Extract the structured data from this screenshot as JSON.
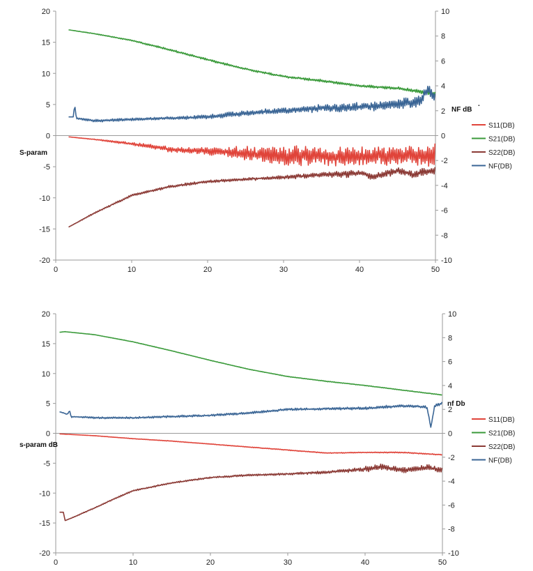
{
  "chart_data": [
    {
      "type": "line",
      "title": "",
      "xlabel": "",
      "ylabel": "S-param",
      "y2label": "NF dB",
      "stray_mark": ".",
      "xlim": [
        0,
        50
      ],
      "xticks": [
        0,
        10,
        20,
        30,
        40,
        50
      ],
      "ylim": [
        -20,
        20
      ],
      "yticks": [
        -20,
        -15,
        -10,
        -5,
        0,
        5,
        10,
        15,
        20
      ],
      "y2lim": [
        -10,
        10
      ],
      "y2ticks": [
        -10,
        -8,
        -6,
        -4,
        -2,
        0,
        2,
        4,
        6,
        8,
        10
      ],
      "grid": false,
      "legend": "right",
      "series": [
        {
          "name": "S11(DB)",
          "color": "#e0443a",
          "axis": "left",
          "x": [
            1.7,
            5,
            10,
            15,
            20,
            22,
            25,
            30,
            32,
            35,
            40,
            45,
            50
          ],
          "y": [
            -0.2,
            -0.6,
            -1.3,
            -2.2,
            -2.5,
            -2.6,
            -2.8,
            -3.2,
            -3.3,
            -3.3,
            -3.3,
            -3.3,
            -3.2
          ],
          "noise": [
            0,
            0.05,
            0.2,
            0.4,
            0.5,
            0.7,
            0.9,
            1.4,
            1.4,
            1.3,
            1.3,
            1.4,
            1.8
          ]
        },
        {
          "name": "S21(DB)",
          "color": "#3a9a3a",
          "axis": "left",
          "x": [
            1.7,
            5,
            10,
            15,
            20,
            25,
            30,
            35,
            40,
            45,
            50
          ],
          "y": [
            17.0,
            16.4,
            15.3,
            13.8,
            12.2,
            10.7,
            9.5,
            8.8,
            8.0,
            7.6,
            6.7
          ],
          "noise": [
            0,
            0.05,
            0.1,
            0.15,
            0.15,
            0.15,
            0.15,
            0.2,
            0.2,
            0.2,
            0.3
          ]
        },
        {
          "name": "S22(DB)",
          "color": "#8b3a35",
          "axis": "left",
          "x": [
            1.7,
            5,
            10,
            15,
            20,
            25,
            30,
            35,
            38,
            40,
            42,
            45,
            47,
            50
          ],
          "y": [
            -14.7,
            -12.5,
            -9.6,
            -8.2,
            -7.4,
            -7.0,
            -6.7,
            -6.3,
            -6.2,
            -6.0,
            -6.6,
            -5.6,
            -6.2,
            -5.6
          ],
          "noise": [
            0,
            0.1,
            0.15,
            0.2,
            0.2,
            0.2,
            0.25,
            0.4,
            0.5,
            0.4,
            0.5,
            0.5,
            0.5,
            0.6
          ]
        },
        {
          "name": "NF(DB)",
          "color": "#3a6595",
          "axis": "right",
          "x": [
            1.7,
            2.3,
            2.5,
            2.7,
            5,
            10,
            15,
            20,
            25,
            30,
            35,
            40,
            45,
            48,
            49,
            50
          ],
          "y": [
            1.5,
            1.5,
            2.5,
            1.4,
            1.2,
            1.3,
            1.4,
            1.5,
            1.8,
            2.0,
            2.2,
            2.3,
            2.5,
            2.8,
            3.8,
            3.0
          ],
          "noise": [
            0,
            0,
            0,
            0.05,
            0.1,
            0.1,
            0.1,
            0.15,
            0.2,
            0.2,
            0.25,
            0.3,
            0.35,
            0.4,
            0.4,
            0.4
          ]
        }
      ]
    },
    {
      "type": "line",
      "title": "",
      "xlabel": "",
      "ylabel": "s-param dB",
      "y2label": "nf Db",
      "xlim": [
        0,
        50
      ],
      "xticks": [
        0,
        10,
        20,
        30,
        40,
        50
      ],
      "ylim": [
        -20,
        20
      ],
      "yticks": [
        -20,
        -15,
        -10,
        -5,
        0,
        5,
        10,
        15,
        20
      ],
      "y2lim": [
        -10,
        10
      ],
      "y2ticks": [
        -10,
        -8,
        -6,
        -4,
        -2,
        0,
        2,
        4,
        6,
        8,
        10
      ],
      "grid": false,
      "legend": "right",
      "series": [
        {
          "name": "S11(DB)",
          "color": "#e0443a",
          "axis": "left",
          "x": [
            0.5,
            5,
            10,
            15,
            20,
            25,
            30,
            35,
            40,
            45,
            50
          ],
          "y": [
            -0.1,
            -0.4,
            -0.9,
            -1.3,
            -1.8,
            -2.3,
            -2.8,
            -3.3,
            -3.2,
            -3.2,
            -3.6
          ],
          "noise": [
            0,
            0.02,
            0.03,
            0.04,
            0.04,
            0.05,
            0.06,
            0.06,
            0.07,
            0.08,
            0.08
          ]
        },
        {
          "name": "S21(DB)",
          "color": "#3a9a3a",
          "axis": "left",
          "x": [
            0.5,
            1.2,
            5,
            10,
            15,
            20,
            25,
            30,
            35,
            40,
            45,
            50
          ],
          "y": [
            16.9,
            17.0,
            16.5,
            15.3,
            13.8,
            12.2,
            10.7,
            9.5,
            8.7,
            8.0,
            7.2,
            6.4
          ],
          "noise": [
            0,
            0,
            0.02,
            0.03,
            0.03,
            0.03,
            0.03,
            0.04,
            0.05,
            0.05,
            0.05,
            0.05
          ]
        },
        {
          "name": "S22(DB)",
          "color": "#8b3a35",
          "axis": "left",
          "x": [
            0.5,
            1.0,
            1.2,
            1.4,
            2,
            5,
            8,
            10,
            15,
            20,
            25,
            30,
            35,
            38,
            40,
            42,
            45,
            48,
            50
          ],
          "y": [
            -13.2,
            -13.2,
            -14.6,
            -14.5,
            -14.2,
            -12.5,
            -10.7,
            -9.6,
            -8.3,
            -7.4,
            -7.0,
            -6.8,
            -6.5,
            -6.2,
            -6.0,
            -5.6,
            -6.2,
            -5.7,
            -6.2
          ],
          "noise": [
            0,
            0,
            0,
            0,
            0.05,
            0.08,
            0.1,
            0.1,
            0.1,
            0.12,
            0.15,
            0.15,
            0.2,
            0.3,
            0.4,
            0.45,
            0.4,
            0.4,
            0.4
          ]
        },
        {
          "name": "NF(DB)",
          "color": "#3a6595",
          "axis": "right",
          "x": [
            0.5,
            1.5,
            1.8,
            2.0,
            2.2,
            5,
            10,
            20,
            25,
            30,
            40,
            45,
            48,
            48.5,
            49,
            50
          ],
          "y": [
            1.8,
            1.6,
            1.9,
            1.3,
            1.4,
            1.3,
            1.3,
            1.5,
            1.7,
            2.0,
            2.1,
            2.3,
            2.2,
            0.5,
            2.3,
            2.5
          ],
          "noise": [
            0,
            0.05,
            0,
            0.05,
            0.05,
            0.07,
            0.07,
            0.08,
            0.08,
            0.08,
            0.1,
            0.1,
            0.1,
            0,
            0.1,
            0.12
          ]
        }
      ]
    }
  ]
}
